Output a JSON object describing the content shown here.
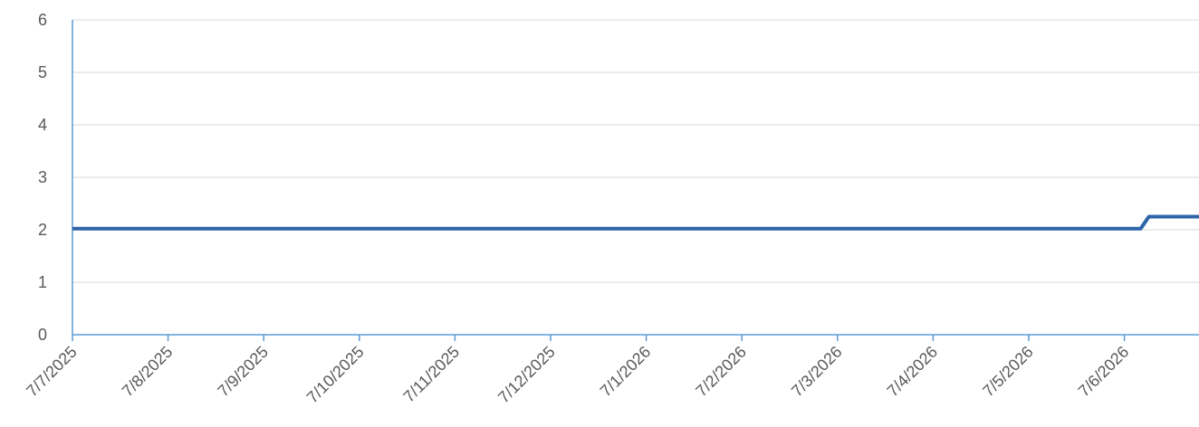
{
  "chart_data": {
    "type": "line",
    "title": "",
    "xlabel": "",
    "ylabel": "",
    "ylim": [
      0,
      6
    ],
    "yticks": [
      "0",
      "1",
      "2",
      "3",
      "4",
      "5",
      "6"
    ],
    "x_tick_labels": [
      "7/7/2025",
      "7/8/2025",
      "7/9/2025",
      "7/10/2025",
      "7/11/2025",
      "7/12/2025",
      "7/1/2026",
      "7/2/2026",
      "7/3/2026",
      "7/4/2026",
      "7/5/2026",
      "7/6/2026"
    ],
    "grid": true,
    "legend": "none",
    "series": [
      {
        "color": "#2e64a8",
        "points": [
          {
            "x": "7/7/2025",
            "y": 2.02
          },
          {
            "x": "7/6/2026",
            "y": 2.02
          },
          {
            "x": "7/6/2026",
            "y": 2.02
          },
          {
            "x": "7/6/2026",
            "y": 2.25
          },
          {
            "x": "7/6/2026",
            "y": 2.25
          }
        ]
      }
    ]
  }
}
